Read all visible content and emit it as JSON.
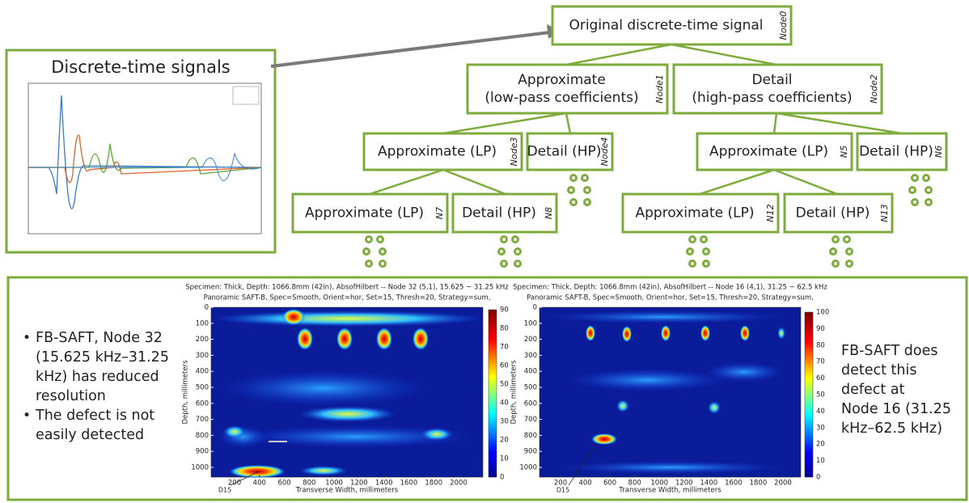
{
  "signal_panel": {
    "title": "Discrete-time signals"
  },
  "tree": {
    "nodes": [
      {
        "label": [
          "Original discrete-time signal"
        ],
        "tag": "Node0"
      },
      {
        "label": [
          "Approximate",
          "(low-pass coefficients)"
        ],
        "tag": "Node1"
      },
      {
        "label": [
          "Detail",
          "(high-pass coefficients)"
        ],
        "tag": "Node2"
      },
      {
        "label": [
          "Approximate (LP)"
        ],
        "tag": "Node3"
      },
      {
        "label": [
          "Detail (HP)"
        ],
        "tag": "Node4"
      },
      {
        "label": [
          "Approximate (LP)"
        ],
        "tag": "N5"
      },
      {
        "label": [
          "Detail (HP)"
        ],
        "tag": "N6"
      },
      {
        "label": [
          "Approximate (LP)"
        ],
        "tag": "N7"
      },
      {
        "label": [
          "Detail (HP)"
        ],
        "tag": "N8"
      },
      {
        "label": [
          "Approximate (LP)"
        ],
        "tag": "N12"
      },
      {
        "label": [
          "Detail (HP)"
        ],
        "tag": "N13"
      }
    ]
  },
  "bottom": {
    "bullets": [
      [
        "FB-SAFT, Node 32",
        "(15.625 kHz–31.25",
        "kHz) has reduced",
        "resolution"
      ],
      [
        "The defect is not",
        "easily detected"
      ]
    ],
    "note": [
      "FB-SAFT does",
      "detect this",
      "defect at",
      "Node 16 (31.25",
      "kHz–62.5 kHz)"
    ],
    "plots": [
      {
        "title": [
          "Specimen: Thick, Depth: 1066.8mm (42in), AbsofHilbert -- Node 32 (5,1), 15.625 ~ 31.25 kHz",
          "Panoramic SAFT-B, Spec=Smooth, Orient=hor, Set=15, Thresh=20, Strategy=sum,"
        ],
        "xlabel": "Transverse Width, millimeters",
        "ylabel": "Depth, millimeters",
        "xticks": [
          200,
          400,
          600,
          800,
          1000,
          1200,
          1400,
          1600,
          1800,
          2000
        ],
        "yticks": [
          0,
          100,
          200,
          300,
          400,
          500,
          600,
          700,
          800,
          900,
          1000
        ],
        "cbticks": [
          0,
          10,
          20,
          30,
          40,
          50,
          60,
          70,
          80,
          90
        ],
        "annotation": "D15"
      },
      {
        "title": [
          "Specimen: Thick, Depth: 1066.8mm (42in), AbsofHilbert -- Node 16 (4,1), 31.25 ~ 62.5 kHz",
          "Panoramic SAFT-B, Spec=Smooth, Orient=hor, Set=15, Thresh=20, Strategy=sum,"
        ],
        "xlabel": "Transverse Width, millimeters",
        "ylabel": "Depth, millimeters",
        "xticks": [
          200,
          400,
          600,
          800,
          1000,
          1200,
          1400,
          1600,
          1800,
          2000
        ],
        "yticks": [
          0,
          100,
          200,
          300,
          400,
          500,
          600,
          700,
          800,
          900,
          1000
        ],
        "cbticks": [
          0,
          10,
          20,
          30,
          40,
          50,
          60,
          70,
          80,
          90,
          100
        ],
        "annotation": "D15"
      }
    ]
  }
}
